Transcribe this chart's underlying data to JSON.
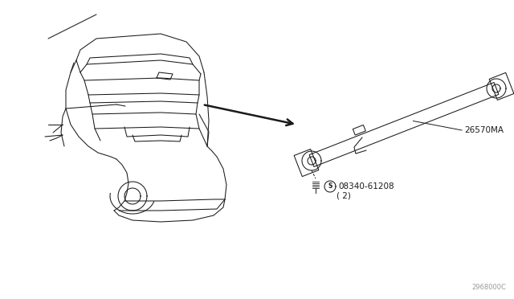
{
  "bg_color": "#ffffff",
  "line_color": "#1a1a1a",
  "fig_width": 6.4,
  "fig_height": 3.72,
  "dpi": 100,
  "label_26570MA": "26570MA",
  "label_screw": "08340-61208",
  "label_screw_qty": "( 2)",
  "label_diagram_id": "2968000C",
  "car_lw": 0.75,
  "lamp_lw": 0.75,
  "arrow_lw": 1.8,
  "note_gray": "#999999"
}
